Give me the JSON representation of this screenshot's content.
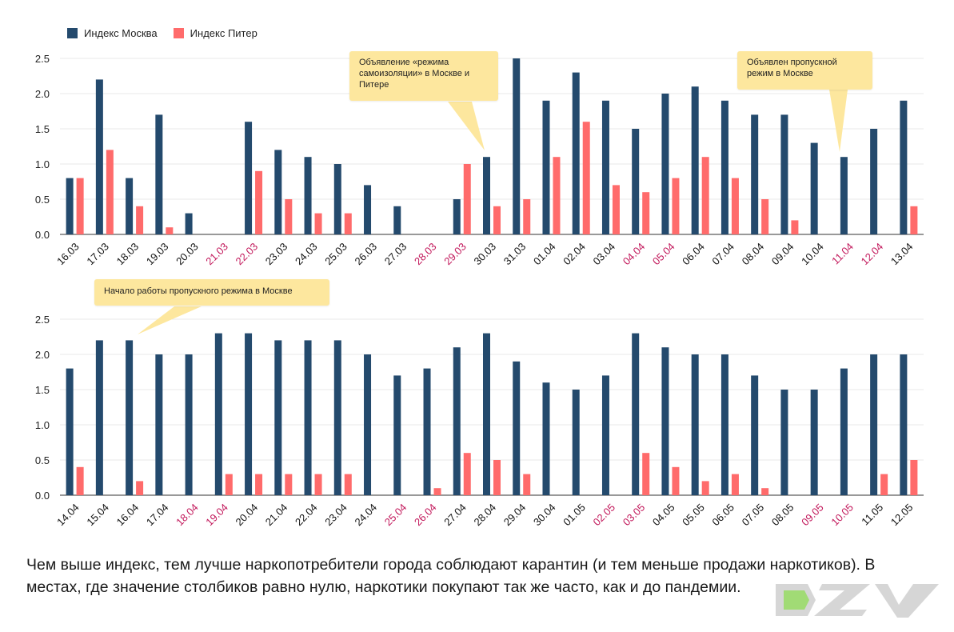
{
  "legend": {
    "moscow": {
      "label": "Индекс Москва",
      "color": "#244a6d"
    },
    "piter": {
      "label": "Индекс Питер",
      "color": "#ff6b6b"
    }
  },
  "colors": {
    "weekend_label": "#c2185b",
    "normal_label": "#111111",
    "grid": "#e8e8e8",
    "callout": "#fde79e"
  },
  "chart_data": [
    {
      "type": "bar",
      "categories": [
        "16.03",
        "17.03",
        "18.03",
        "19.03",
        "20.03",
        "21.03",
        "22.03",
        "23.03",
        "24.03",
        "25.03",
        "26.03",
        "27.03",
        "28.03",
        "29.03",
        "30.03",
        "31.03",
        "01.04",
        "02.04",
        "03.04",
        "04.04",
        "05.04",
        "06.04",
        "07.04",
        "08.04",
        "09.04",
        "10.04",
        "11.04",
        "12.04",
        "13.04"
      ],
      "weekend": [
        false,
        false,
        false,
        false,
        false,
        true,
        true,
        false,
        false,
        false,
        false,
        false,
        true,
        true,
        false,
        false,
        false,
        false,
        false,
        true,
        true,
        false,
        false,
        false,
        false,
        false,
        true,
        true,
        false
      ],
      "series": [
        {
          "name": "Индекс Москва",
          "values": [
            0.8,
            2.2,
            0.8,
            1.7,
            0.3,
            0,
            1.6,
            1.2,
            1.1,
            1.0,
            0.7,
            0.4,
            0,
            0.5,
            1.1,
            2.5,
            1.9,
            2.3,
            1.9,
            1.5,
            2.0,
            2.1,
            1.9,
            1.7,
            1.7,
            1.3,
            1.1,
            1.5,
            1.9
          ]
        },
        {
          "name": "Индекс Питер",
          "values": [
            0.8,
            1.2,
            0.4,
            0.1,
            0,
            0,
            0.9,
            0.5,
            0.3,
            0.3,
            0,
            0,
            0,
            1.0,
            0.4,
            0.5,
            1.1,
            1.6,
            0.7,
            0.6,
            0.8,
            1.1,
            0.8,
            0.5,
            0.2,
            0,
            0,
            0,
            0.4
          ]
        }
      ],
      "yticks": [
        "0.0",
        "0.5",
        "1.0",
        "1.5",
        "2.0",
        "2.5"
      ],
      "ylim": [
        0,
        2.5
      ]
    },
    {
      "type": "bar",
      "categories": [
        "14.04",
        "15.04",
        "16.04",
        "17.04",
        "18.04",
        "19.04",
        "20.04",
        "21.04",
        "22.04",
        "23.04",
        "24.04",
        "25.04",
        "26.04",
        "27.04",
        "28.04",
        "29.04",
        "30.04",
        "01.05",
        "02.05",
        "03.05",
        "04.05",
        "05.05",
        "06.05",
        "07.05",
        "08.05",
        "09.05",
        "10.05",
        "11.05",
        "12.05"
      ],
      "weekend": [
        false,
        false,
        false,
        false,
        true,
        true,
        false,
        false,
        false,
        false,
        false,
        true,
        true,
        false,
        false,
        false,
        false,
        false,
        true,
        true,
        false,
        false,
        false,
        false,
        false,
        true,
        true,
        false,
        false
      ],
      "series": [
        {
          "name": "Индекс Москва",
          "values": [
            1.8,
            2.2,
            2.2,
            2.0,
            2.0,
            2.3,
            2.3,
            2.2,
            2.2,
            2.2,
            2.0,
            1.7,
            1.8,
            2.1,
            2.3,
            1.9,
            1.6,
            1.5,
            1.7,
            2.3,
            2.1,
            2.0,
            2.0,
            1.7,
            1.5,
            1.5,
            1.8,
            2.0,
            2.0
          ]
        },
        {
          "name": "Индекс Питер",
          "values": [
            0.4,
            0,
            0.2,
            0,
            0,
            0.3,
            0.3,
            0.3,
            0.3,
            0.3,
            0,
            0,
            0.1,
            0.6,
            0.5,
            0.3,
            0,
            0,
            0,
            0.6,
            0.4,
            0.2,
            0.3,
            0.1,
            0,
            0,
            0,
            0.3,
            0.5
          ]
        }
      ],
      "yticks": [
        "0.0",
        "0.5",
        "1.0",
        "1.5",
        "2.0",
        "2.5"
      ],
      "ylim": [
        0,
        2.5
      ]
    }
  ],
  "callouts": {
    "c1": "Объявление «режима самоизоляции» в Москве и Питере",
    "c2": "Объявлен пропускной режим в Москве",
    "c3": "Начало работы пропускного режима в Москве"
  },
  "caption": "Чем выше индекс, тем лучше наркопотребители города соблюдают карантин (и тем меньше продажи наркотиков). В местах, где значение столбиков равно нулю, наркотики покупают так же часто, как и до пандемии.",
  "logo": {
    "text": "DZV"
  }
}
